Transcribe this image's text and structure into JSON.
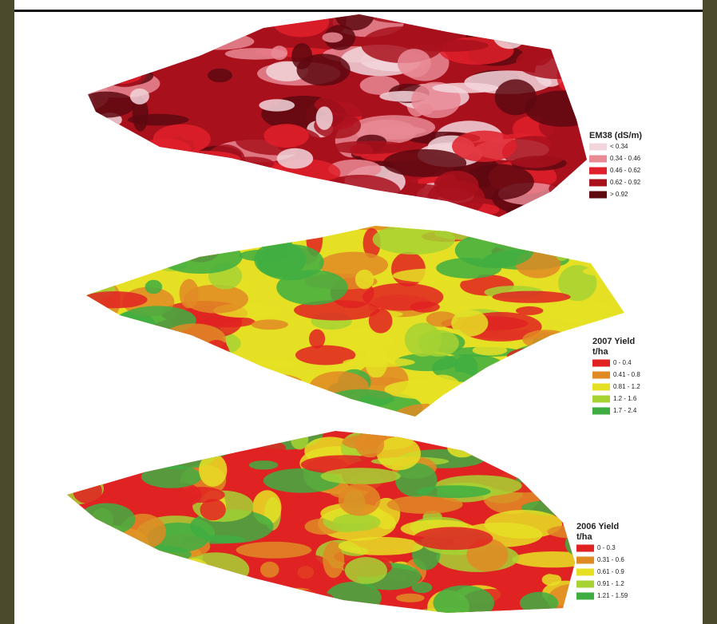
{
  "panels": [
    {
      "legend": {
        "title": "EM38 (dS/m)",
        "items": [
          {
            "label": "< 0.34",
            "color": "#f2d6dc"
          },
          {
            "label": "0.34 - 0.46",
            "color": "#e98a95"
          },
          {
            "label": "0.46 - 0.62",
            "color": "#e0202a"
          },
          {
            "label": "0.62 - 0.92",
            "color": "#a8101c"
          },
          {
            "label": "> 0.92",
            "color": "#5e0810"
          }
        ]
      }
    },
    {
      "legend": {
        "title": "2007 Yield",
        "unit": "t/ha",
        "items": [
          {
            "label": "0 - 0.4",
            "color": "#e02222"
          },
          {
            "label": "0.41 - 0.8",
            "color": "#e08a24"
          },
          {
            "label": "0.81 - 1.2",
            "color": "#e6e024"
          },
          {
            "label": "1.2 - 1.6",
            "color": "#a6d232"
          },
          {
            "label": "1.7 - 2.4",
            "color": "#3fae42"
          }
        ]
      }
    },
    {
      "legend": {
        "title": "2006 Yield",
        "unit": "t/ha",
        "items": [
          {
            "label": "0 - 0.3",
            "color": "#e02222"
          },
          {
            "label": "0.31 - 0.6",
            "color": "#e08a24"
          },
          {
            "label": "0.61 - 0.9",
            "color": "#e6e024"
          },
          {
            "label": "0.91 - 1.2",
            "color": "#a6d232"
          },
          {
            "label": "1.21 - 1.59",
            "color": "#3fae42"
          }
        ]
      }
    }
  ]
}
